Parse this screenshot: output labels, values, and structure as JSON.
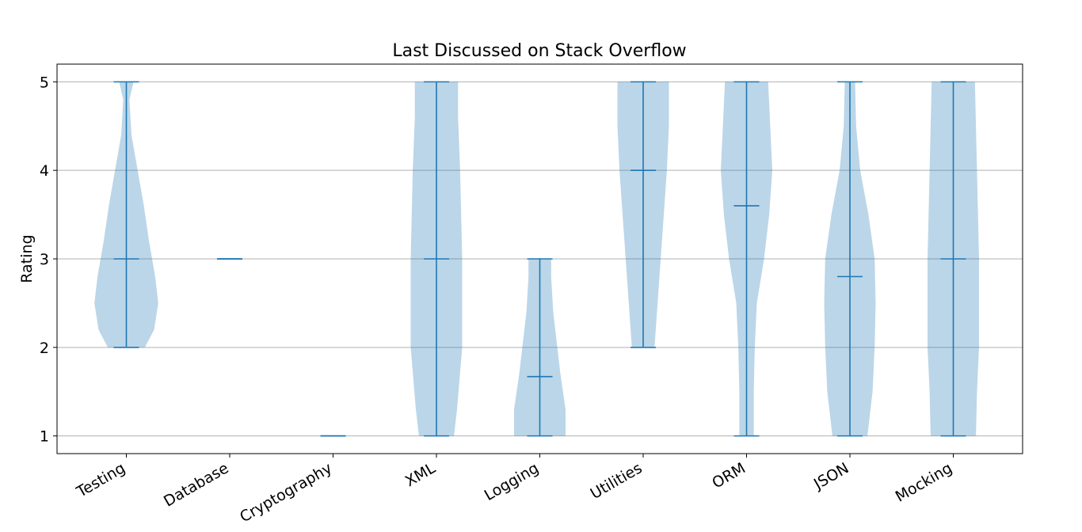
{
  "chart_data": {
    "type": "violin",
    "title": "Last Discussed on Stack Overflow",
    "ylabel": "Rating",
    "xlabel": "",
    "ylim": [
      0.8,
      5.2
    ],
    "yticks": [
      1,
      2,
      3,
      4,
      5
    ],
    "grid": "y",
    "colors": {
      "body": "#1f77b4",
      "grid": "#b0b0b0"
    },
    "categories": [
      "Testing",
      "Database",
      "Cryptography",
      "XML",
      "Logging",
      "Utilities",
      "ORM",
      "JSON",
      "Mocking"
    ],
    "series": [
      {
        "category": "Testing",
        "min": 2,
        "max": 5,
        "mean": 3,
        "density": [
          [
            2,
            0.18
          ],
          [
            2.2,
            0.27
          ],
          [
            2.5,
            0.31
          ],
          [
            2.8,
            0.28
          ],
          [
            3.2,
            0.22
          ],
          [
            3.6,
            0.17
          ],
          [
            4,
            0.11
          ],
          [
            4.4,
            0.05
          ],
          [
            4.8,
            0.03
          ],
          [
            5,
            0.07
          ]
        ]
      },
      {
        "category": "Database",
        "min": 3,
        "max": 3,
        "mean": 3,
        "density": []
      },
      {
        "category": "Cryptography",
        "min": 1,
        "max": 1,
        "mean": 1,
        "density": []
      },
      {
        "category": "XML",
        "min": 1,
        "max": 5,
        "mean": 3,
        "density": [
          [
            1,
            0.17
          ],
          [
            1.3,
            0.2
          ],
          [
            2,
            0.25
          ],
          [
            3,
            0.25
          ],
          [
            4,
            0.23
          ],
          [
            4.6,
            0.21
          ],
          [
            5,
            0.21
          ]
        ]
      },
      {
        "category": "Logging",
        "min": 1,
        "max": 3,
        "mean": 1.67,
        "density": [
          [
            1,
            0.25
          ],
          [
            1.3,
            0.25
          ],
          [
            1.7,
            0.2
          ],
          [
            2,
            0.17
          ],
          [
            2.4,
            0.13
          ],
          [
            2.8,
            0.11
          ],
          [
            3,
            0.11
          ]
        ]
      },
      {
        "category": "Utilities",
        "min": 2,
        "max": 5,
        "mean": 4,
        "density": [
          [
            2,
            0.11
          ],
          [
            2.5,
            0.14
          ],
          [
            3,
            0.17
          ],
          [
            3.5,
            0.2
          ],
          [
            4,
            0.23
          ],
          [
            4.5,
            0.25
          ],
          [
            5,
            0.25
          ]
        ]
      },
      {
        "category": "ORM",
        "min": 1,
        "max": 5,
        "mean": 3.6,
        "density": [
          [
            1,
            0.07
          ],
          [
            1.5,
            0.07
          ],
          [
            2,
            0.08
          ],
          [
            2.5,
            0.1
          ],
          [
            3,
            0.17
          ],
          [
            3.5,
            0.22
          ],
          [
            4,
            0.25
          ],
          [
            4.5,
            0.23
          ],
          [
            5,
            0.21
          ]
        ]
      },
      {
        "category": "JSON",
        "min": 1,
        "max": 5,
        "mean": 2.8,
        "density": [
          [
            1,
            0.17
          ],
          [
            1.5,
            0.22
          ],
          [
            2,
            0.24
          ],
          [
            2.5,
            0.25
          ],
          [
            3,
            0.24
          ],
          [
            3.5,
            0.18
          ],
          [
            4,
            0.1
          ],
          [
            4.5,
            0.06
          ],
          [
            5,
            0.05
          ]
        ]
      },
      {
        "category": "Mocking",
        "min": 1,
        "max": 5,
        "mean": 3,
        "density": [
          [
            1,
            0.22
          ],
          [
            1.5,
            0.23
          ],
          [
            2,
            0.25
          ],
          [
            3,
            0.25
          ],
          [
            4,
            0.23
          ],
          [
            5,
            0.21
          ]
        ]
      }
    ]
  }
}
